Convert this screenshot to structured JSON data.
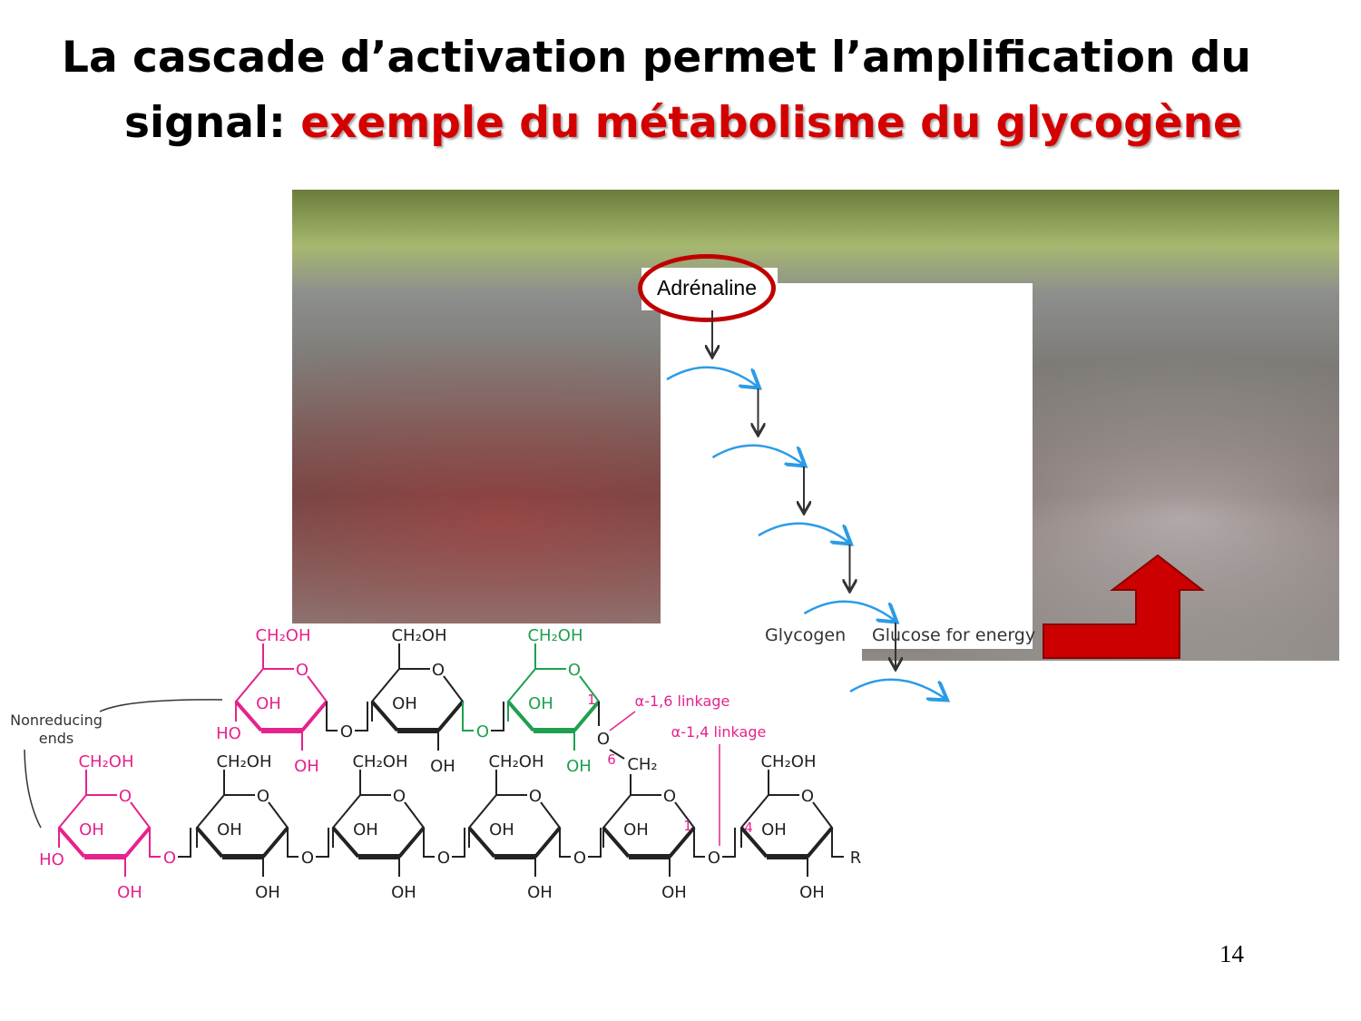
{
  "title": {
    "line1": "La cascade d’activation permet l’amplification du",
    "line2_prefix": "signal: ",
    "line2_highlight": "exemple du métabolisme du glycogène"
  },
  "photo": {
    "description_icon": "marathon-runners-photo"
  },
  "cascade": {
    "start_label": "Adrénaline",
    "substrate_label": "Glycogen",
    "product_label": "Glucose for energy",
    "circle_color": "#c00000",
    "arc_color": "#2b9be8",
    "steps": 4
  },
  "red_arrow": {
    "color": "#cc0000",
    "icon": "turn-up-arrow-icon"
  },
  "glycogen": {
    "nonreducing_label": "Nonreducing ends",
    "alpha16_label": "α-1,6 linkage",
    "alpha14_label": "α-1,4 linkage",
    "ch2oh": "CH₂OH",
    "ch2": "CH₂",
    "oh": "OH",
    "ho": "HO",
    "o": "O",
    "r": "R",
    "pos1": "1",
    "pos4": "4",
    "pos6": "6",
    "colors": {
      "nonreducing": "#e6228c",
      "branch": "#1fa050",
      "chain": "#222222"
    }
  },
  "page_number": "14"
}
